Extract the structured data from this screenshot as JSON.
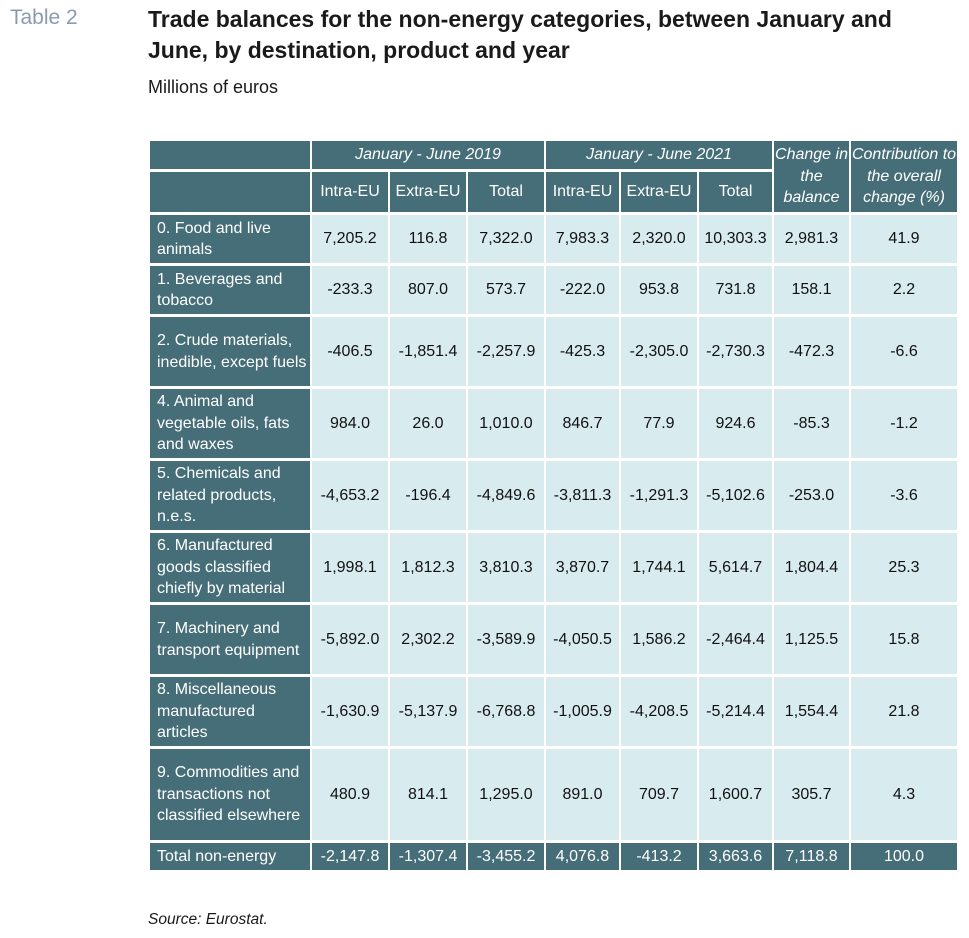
{
  "table_label": "Table 2",
  "title": "Trade balances for the non-energy categories, between January and June, by destination, product and year",
  "subtitle": "Millions of euros",
  "header": {
    "period_2019": "January - June 2019",
    "period_2021": "January - June 2021",
    "change": "Change in the balance",
    "contribution": "Contribution to the overall change (%)",
    "sub_columns": [
      "Intra-EU",
      "Extra-EU",
      "Total",
      "Intra-EU",
      "Extra-EU",
      "Total"
    ]
  },
  "rows": [
    {
      "label": "0. Food and live animals",
      "values": [
        "7,205.2",
        "116.8",
        "7,322.0",
        "7,983.3",
        "2,320.0",
        "10,303.3",
        "2,981.3",
        "41.9"
      ]
    },
    {
      "label": "1. Beverages and tobacco",
      "values": [
        "-233.3",
        "807.0",
        "573.7",
        "-222.0",
        "953.8",
        "731.8",
        "158.1",
        "2.2"
      ]
    },
    {
      "label": "2. Crude materials, inedible, except fuels",
      "values": [
        "-406.5",
        "-1,851.4",
        "-2,257.9",
        "-425.3",
        "-2,305.0",
        "-2,730.3",
        "-472.3",
        "-6.6"
      ]
    },
    {
      "label": "4. Animal and vegetable oils, fats and waxes",
      "values": [
        "984.0",
        "26.0",
        "1,010.0",
        "846.7",
        "77.9",
        "924.6",
        "-85.3",
        "-1.2"
      ]
    },
    {
      "label": "5. Chemicals and related products, n.e.s.",
      "values": [
        "-4,653.2",
        "-196.4",
        "-4,849.6",
        "-3,811.3",
        "-1,291.3",
        "-5,102.6",
        "-253.0",
        "-3.6"
      ]
    },
    {
      "label": "6. Manufactured goods classified chiefly by material",
      "values": [
        "1,998.1",
        "1,812.3",
        "3,810.3",
        "3,870.7",
        "1,744.1",
        "5,614.7",
        "1,804.4",
        "25.3"
      ]
    },
    {
      "label": "7. Machinery and transport equipment",
      "values": [
        "-5,892.0",
        "2,302.2",
        "-3,589.9",
        "-4,050.5",
        "1,586.2",
        "-2,464.4",
        "1,125.5",
        "15.8"
      ]
    },
    {
      "label": "8. Miscellaneous manufactured articles",
      "values": [
        "-1,630.9",
        "-5,137.9",
        "-6,768.8",
        "-1,005.9",
        "-4,208.5",
        "-5,214.4",
        "1,554.4",
        "21.8"
      ]
    },
    {
      "label": "9. Commodities and transactions not classified elsewhere",
      "values": [
        "480.9",
        "814.1",
        "1,295.0",
        "891.0",
        "709.7",
        "1,600.7",
        "305.7",
        "4.3"
      ]
    }
  ],
  "total_row": {
    "label": "Total non-energy",
    "values": [
      "-2,147.8",
      "-1,307.4",
      "-3,455.2",
      "4,076.8",
      "-413.2",
      "3,663.6",
      "7,118.8",
      "100.0"
    ]
  },
  "source": "Source: Eurostat."
}
